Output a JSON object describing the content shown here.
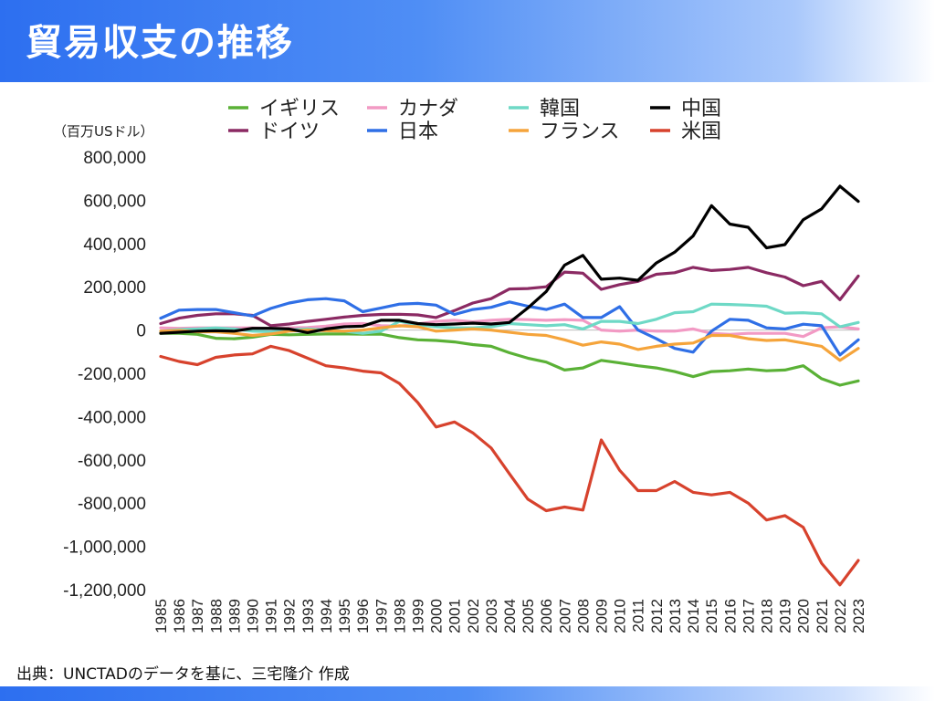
{
  "title": "貿易収支の推移",
  "unit_label": "（百万USドル）",
  "source": "出典：UNCTADのデータを基に、三宅隆介 作成",
  "chart_data": {
    "type": "line",
    "title": "",
    "xlabel": "",
    "ylabel": "（百万USドル）",
    "ylim": [
      -1200000,
      800000
    ],
    "yticks": [
      800000,
      600000,
      400000,
      200000,
      0,
      -200000,
      -400000,
      -600000,
      -800000,
      -1000000,
      -1200000
    ],
    "ytick_labels": [
      "800,000",
      "600,000",
      "400,000",
      "200,000",
      "0",
      "-200,000",
      "-400,000",
      "-600,000",
      "-800,000",
      "-1,000,000",
      "-1,200,000"
    ],
    "grid": false,
    "legend_position": "top",
    "x": [
      "1985",
      "1986",
      "1987",
      "1988",
      "1989",
      "1990",
      "1991",
      "1992",
      "1993",
      "1994",
      "1995",
      "1996",
      "1997",
      "1998",
      "1999",
      "2000",
      "2001",
      "2002",
      "2003",
      "2004",
      "2005",
      "2006",
      "2007",
      "2008",
      "2009",
      "2010",
      "2011",
      "2012",
      "2013",
      "2014",
      "2015",
      "2016",
      "2017",
      "2018",
      "2019",
      "2020",
      "2021",
      "2022",
      "2023"
    ],
    "series": [
      {
        "name": "イギリス",
        "color": "#5ab136",
        "values": [
          -15000,
          -15000,
          -20000,
          -38000,
          -40000,
          -33000,
          -20000,
          -22000,
          -20000,
          -18000,
          -18000,
          -19000,
          -19000,
          -35000,
          -45000,
          -48000,
          -55000,
          -67000,
          -75000,
          -105000,
          -130000,
          -148000,
          -185000,
          -175000,
          -140000,
          -152000,
          -165000,
          -175000,
          -192000,
          -215000,
          -192000,
          -188000,
          -180000,
          -188000,
          -185000,
          -165000,
          -225000,
          -255000,
          -235000
        ]
      },
      {
        "name": "ドイツ",
        "color": "#8b2a63",
        "values": [
          30000,
          55000,
          68000,
          75000,
          75000,
          68000,
          20000,
          28000,
          40000,
          50000,
          60000,
          68000,
          72000,
          73000,
          70000,
          58000,
          90000,
          125000,
          145000,
          190000,
          192000,
          200000,
          268000,
          263000,
          188000,
          210000,
          225000,
          258000,
          265000,
          290000,
          275000,
          280000,
          290000,
          265000,
          245000,
          205000,
          225000,
          140000,
          250000
        ]
      },
      {
        "name": "カナダ",
        "color": "#f29ac4",
        "values": [
          10000,
          8000,
          10000,
          10000,
          10000,
          10000,
          8000,
          10000,
          12000,
          18000,
          28000,
          30000,
          20000,
          18000,
          28000,
          40000,
          45000,
          38000,
          45000,
          50000,
          48000,
          45000,
          48000,
          45000,
          0,
          -5000,
          0,
          -5000,
          -5000,
          5000,
          -15000,
          -20000,
          -15000,
          -15000,
          -15000,
          -30000,
          10000,
          15000,
          5000
        ]
      },
      {
        "name": "日本",
        "color": "#2f6fe6",
        "values": [
          55000,
          92000,
          95000,
          95000,
          80000,
          65000,
          100000,
          125000,
          140000,
          145000,
          135000,
          85000,
          102000,
          120000,
          123000,
          115000,
          72000,
          95000,
          105000,
          130000,
          110000,
          95000,
          120000,
          58000,
          58000,
          108000,
          0,
          -40000,
          -85000,
          -102000,
          -5000,
          50000,
          45000,
          10000,
          5000,
          27000,
          20000,
          -115000,
          -45000
        ]
      },
      {
        "name": "韓国",
        "color": "#6ed9c6",
        "values": [
          -5000,
          2000,
          5000,
          10000,
          5000,
          -5000,
          -8000,
          0,
          5000,
          0,
          -5000,
          -15000,
          -5000,
          40000,
          25000,
          15000,
          10000,
          10000,
          15000,
          30000,
          25000,
          20000,
          25000,
          5000,
          40000,
          40000,
          30000,
          50000,
          80000,
          85000,
          120000,
          118000,
          115000,
          110000,
          78000,
          80000,
          75000,
          15000,
          35000
        ]
      },
      {
        "name": "フランス",
        "color": "#f5a43b",
        "values": [
          -5000,
          -2000,
          -8000,
          -8000,
          -15000,
          -25000,
          -18000,
          -5000,
          0,
          -3000,
          -5000,
          0,
          10000,
          20000,
          15000,
          -5000,
          0,
          5000,
          0,
          -10000,
          -20000,
          -25000,
          -45000,
          -70000,
          -55000,
          -65000,
          -90000,
          -75000,
          -65000,
          -60000,
          -25000,
          -25000,
          -40000,
          -48000,
          -45000,
          -60000,
          -75000,
          -140000,
          -85000
        ]
      },
      {
        "name": "中国",
        "color": "#000000",
        "values": [
          -15000,
          -10000,
          -5000,
          -3000,
          -5000,
          8000,
          8000,
          5000,
          -12000,
          5000,
          15000,
          18000,
          45000,
          45000,
          30000,
          25000,
          28000,
          32000,
          28000,
          35000,
          102000,
          178000,
          300000,
          345000,
          235000,
          240000,
          230000,
          310000,
          360000,
          435000,
          575000,
          490000,
          475000,
          380000,
          395000,
          510000,
          560000,
          665000,
          595000
        ]
      },
      {
        "name": "米国",
        "color": "#d7422d",
        "values": [
          -122000,
          -145000,
          -160000,
          -126000,
          -115000,
          -110000,
          -75000,
          -95000,
          -130000,
          -165000,
          -175000,
          -190000,
          -198000,
          -247000,
          -335000,
          -448000,
          -425000,
          -475000,
          -545000,
          -665000,
          -782000,
          -835000,
          -818000,
          -832000,
          -508000,
          -648000,
          -742000,
          -742000,
          -700000,
          -750000,
          -762000,
          -750000,
          -800000,
          -878000,
          -858000,
          -912000,
          -1078000,
          -1178000,
          -1065000
        ]
      }
    ]
  }
}
